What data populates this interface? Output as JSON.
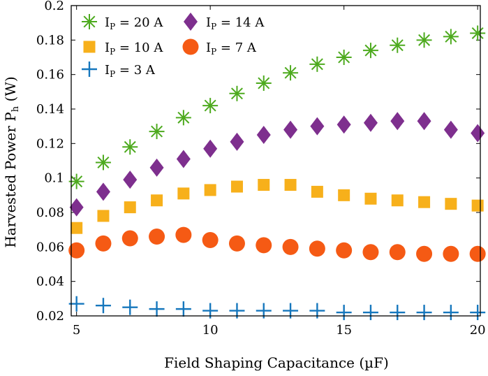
{
  "chart_data": {
    "type": "scatter",
    "title": "",
    "xlabel": "Field Shaping Capacitance (µF)",
    "ylabel": "Harvested Power P",
    "ylabel_sub": "h",
    "ylabel_unit": "(W)",
    "xlim": [
      4.8,
      20.1
    ],
    "ylim": [
      0.02,
      0.2
    ],
    "xticks": [
      5,
      10,
      15,
      20
    ],
    "yticks": [
      0.02,
      0.04,
      0.06,
      0.08,
      0.1,
      0.12,
      0.14,
      0.16,
      0.18,
      0.2
    ],
    "ytick_labels": [
      "0.02",
      "0.04",
      "0.06",
      "0.08",
      "0.1",
      "0.12",
      "0.14",
      "0.16",
      "0.18",
      "0.2"
    ],
    "xtick_labels": [
      "5",
      "10",
      "15",
      "20"
    ],
    "grid": false,
    "legend_position": "top-left",
    "x": [
      5,
      6,
      7,
      8,
      9,
      10,
      11,
      12,
      13,
      14,
      15,
      16,
      17,
      18,
      19,
      20
    ],
    "series": [
      {
        "name": "I",
        "sub": "P",
        "value_text": " = 20 A",
        "marker": "asterisk",
        "color": "#4DAA1E",
        "values": [
          0.098,
          0.109,
          0.118,
          0.127,
          0.135,
          0.142,
          0.149,
          0.155,
          0.161,
          0.166,
          0.17,
          0.174,
          0.177,
          0.18,
          0.182,
          0.184
        ]
      },
      {
        "name": "I",
        "sub": "P",
        "value_text": " = 14 A",
        "marker": "diamond",
        "color": "#7E2F8E",
        "values": [
          0.083,
          0.092,
          0.099,
          0.106,
          0.111,
          0.117,
          0.121,
          0.125,
          0.128,
          0.13,
          0.131,
          0.132,
          0.133,
          0.133,
          0.128,
          0.126
        ]
      },
      {
        "name": "I",
        "sub": "P",
        "value_text": " = 10 A",
        "marker": "square",
        "color": "#F7B01B",
        "values": [
          0.071,
          0.078,
          0.083,
          0.087,
          0.091,
          0.093,
          0.095,
          0.096,
          0.096,
          0.092,
          0.09,
          0.088,
          0.087,
          0.086,
          0.085,
          0.084
        ]
      },
      {
        "name": "I",
        "sub": "P",
        "value_text": " = 7 A",
        "marker": "circle",
        "color": "#F55A14",
        "values": [
          0.058,
          0.062,
          0.065,
          0.066,
          0.067,
          0.064,
          0.062,
          0.061,
          0.06,
          0.059,
          0.058,
          0.057,
          0.057,
          0.056,
          0.056,
          0.056
        ]
      },
      {
        "name": "I",
        "sub": "P",
        "value_text": " = 3 A",
        "marker": "plus",
        "color": "#1677BD",
        "values": [
          0.027,
          0.026,
          0.025,
          0.024,
          0.024,
          0.023,
          0.023,
          0.023,
          0.023,
          0.023,
          0.022,
          0.022,
          0.022,
          0.022,
          0.022,
          0.022
        ]
      }
    ],
    "legend_order": [
      0,
      1,
      2,
      3,
      4
    ]
  }
}
